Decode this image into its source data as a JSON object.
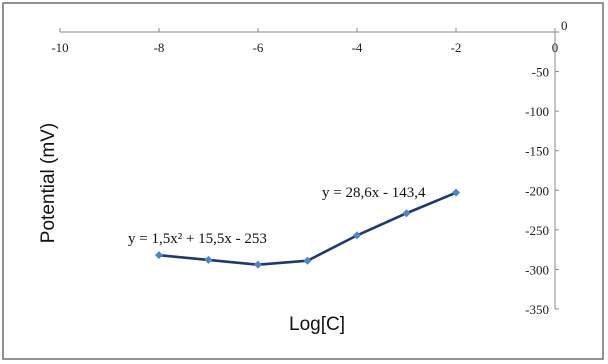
{
  "chart_data": {
    "type": "line",
    "xlabel": "Log[C]",
    "ylabel": "Potential (mV)",
    "xlim": [
      -10,
      0
    ],
    "ylim": [
      -350,
      0
    ],
    "x_ticks": [
      "-10",
      "-8",
      "-6",
      "-4",
      "-2",
      "0"
    ],
    "y_ticks": [
      "0",
      "-50",
      "-100",
      "-150",
      "-200",
      "-250",
      "-300",
      "-350"
    ],
    "grid": false,
    "legend": "none",
    "series": [
      {
        "x": [
          -8,
          -7,
          -6,
          -5,
          -4,
          -3,
          -2
        ],
        "y": [
          -282,
          -288,
          -294,
          -289,
          -257,
          -229,
          -203
        ],
        "line_color": "#1f3a6e",
        "marker_color": "#4a86c8"
      }
    ],
    "annotations": [
      {
        "text": "y = 1,5x² + 15,5x - 253"
      },
      {
        "text": "y = 28,6x - 143,4"
      }
    ]
  }
}
